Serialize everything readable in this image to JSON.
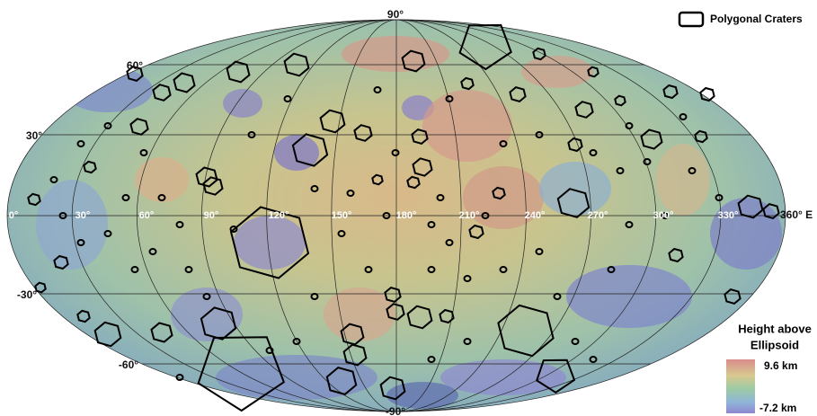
{
  "legend": {
    "label": "Polygonal Craters"
  },
  "latitude_labels": [
    "90°",
    "60°",
    "30°",
    "-30°",
    "-60°",
    "-90°"
  ],
  "longitude_labels": [
    "0°",
    "30°",
    "60°",
    "90°",
    "120°",
    "150°",
    "180°",
    "210°",
    "240°",
    "270°",
    "300°",
    "330°",
    "360° E"
  ],
  "colorbar": {
    "title_line1": "Height above",
    "title_line2": "Ellipsoid",
    "max_label": "9.6 km",
    "min_label": "-7.2 km"
  }
}
